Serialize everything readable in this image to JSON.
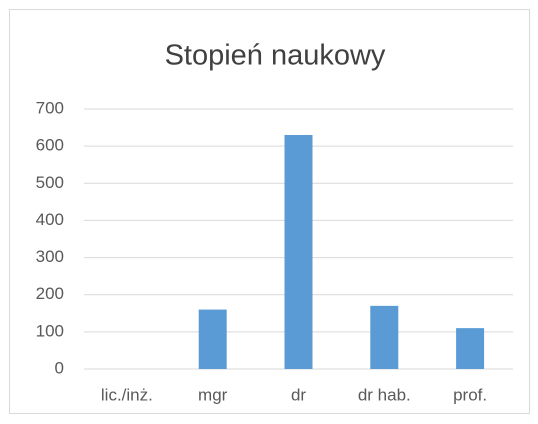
{
  "chart_data": {
    "type": "bar",
    "title": "Stopień naukowy",
    "categories": [
      "lic./inż.",
      "mgr",
      "dr",
      "dr hab.",
      "prof."
    ],
    "values": [
      0,
      160,
      630,
      170,
      110
    ],
    "color": "#5b9bd5",
    "ylim": [
      0,
      700
    ],
    "yticks": [
      0,
      100,
      200,
      300,
      400,
      500,
      600,
      700
    ],
    "grid": true
  }
}
